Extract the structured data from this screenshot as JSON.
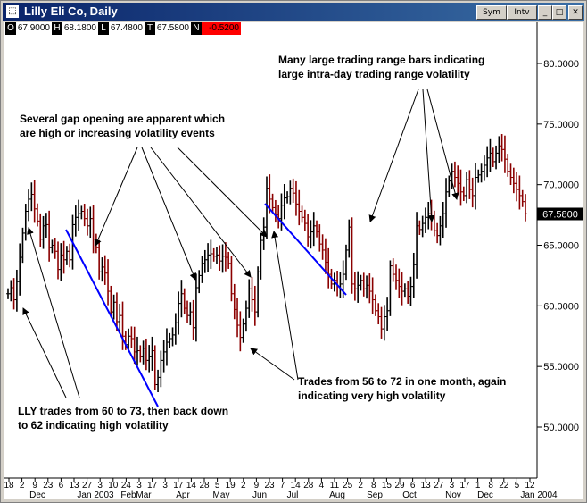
{
  "window": {
    "title": "Lilly Eli Co, Daily",
    "sym_label": "Sym",
    "intv_label": "Intv"
  },
  "quote": {
    "open_key": "O",
    "open": "67.9000",
    "high_key": "H",
    "high": "68.1800",
    "low_key": "L",
    "low": "67.4800",
    "close_key": "T",
    "close": "67.5800",
    "change_key": "N",
    "change": "-0.5200"
  },
  "colors": {
    "up": "#000000",
    "down": "#8b0000",
    "trendline": "#0000ff",
    "last_price_bg": "#000000"
  },
  "chart_data": {
    "type": "bar",
    "title": "",
    "y_ticks": [
      "80.0000",
      "75.0000",
      "70.0000",
      "65.0000",
      "60.0000",
      "55.0000",
      "50.0000"
    ],
    "ylim": [
      46.3,
      82.7
    ],
    "last_price": "67.5800",
    "x_day_ticks": [
      "18",
      "2",
      "9",
      "23",
      "6",
      "13",
      "27",
      "3",
      "10",
      "24",
      "3",
      "17",
      "3",
      "17",
      "14",
      "28",
      "5",
      "19",
      "2",
      "9",
      "23",
      "7",
      "14",
      "28",
      "4",
      "11",
      "25",
      "2",
      "8",
      "15",
      "29",
      "6",
      "13",
      "27",
      "3",
      "17",
      "1",
      "8",
      "22",
      "5",
      "12"
    ],
    "x_month_ticks": [
      "Dec",
      "Jan 2003",
      "Feb",
      "Mar",
      "Apr",
      "May",
      "Jun",
      "Jul",
      "Aug",
      "Sep",
      "Oct",
      "Nov",
      "Dec",
      "Jan 2004"
    ],
    "series": [
      {
        "values": [
          61,
          61.5,
          60.5,
          62,
          64,
          66,
          67.8,
          68.8,
          69.2,
          68,
          67,
          65.5,
          66.6,
          66.7,
          64.8,
          65,
          64.5,
          63,
          64.2,
          63.8,
          64.5,
          63.8,
          66.7,
          67.3,
          67.6,
          67.8,
          67.2,
          66.6,
          67.2,
          65.5,
          64.8,
          62.8,
          63.2,
          62.7,
          61.2,
          59.5,
          60.3,
          58.7,
          59.2,
          57.5,
          56.8,
          57.5,
          57.3,
          56.2,
          56.3,
          55.8,
          56.5,
          55.5,
          55.8,
          56.3,
          53.5,
          54.1,
          55.5,
          56.2,
          57,
          57.3,
          57.6,
          58.6,
          60.2,
          61,
          59.8,
          59.2,
          59.5,
          58.2,
          61.5,
          62.5,
          63.5,
          63.8,
          64.2,
          64.3,
          64.1,
          64.2,
          63.7,
          64.1,
          64,
          63.5,
          61,
          59.7,
          58.4,
          57.4,
          58.5,
          59.8,
          61.4,
          60.5,
          59.5,
          62.8,
          65.4,
          66.5,
          69.7,
          68.8,
          68.1,
          67.5,
          67.2,
          68.3,
          68.9,
          69,
          69.7,
          69.3,
          68.4,
          67.8,
          67.3,
          66.8,
          65.7,
          66.1,
          66.6,
          66.1,
          65.1,
          64.6,
          63.6,
          62.6,
          61.8,
          62.1,
          61.6,
          61.8,
          62.6,
          64.6,
          66.5,
          61.8,
          61.4,
          61.7,
          62.1,
          61.4,
          61.7,
          61.2,
          60.5,
          59.6,
          59.1,
          58.1,
          59.1,
          59.6,
          63.3,
          62.6,
          62.1,
          61.6,
          61.2,
          61.4,
          60.8,
          61.6,
          63.4,
          66.6,
          66.3,
          66.8,
          67.3,
          67.6,
          67.4,
          66.2,
          65.8,
          66.6,
          67.6,
          69.4,
          70.3,
          71.1,
          70.6,
          70.1,
          69.4,
          69.1,
          70.4,
          69.6,
          69.1,
          70.6,
          70.8,
          71.1,
          71.6,
          72.2,
          72.6,
          71.9,
          72.6,
          73.2,
          72.9,
          72.1,
          71.1,
          70.6,
          70.1,
          69.6,
          69.1,
          68.6,
          67.6
        ]
      }
    ],
    "annotations": [
      "Many large trading range bars indicating large intra-day trading range volatility",
      "Several gap opening are apparent which are high or increasing volatility events",
      "Trades from 56 to 72 in one month, again indicating very high volatility",
      "LLY trades from 60 to 73, then back down to 62 indicating high volatility"
    ]
  }
}
